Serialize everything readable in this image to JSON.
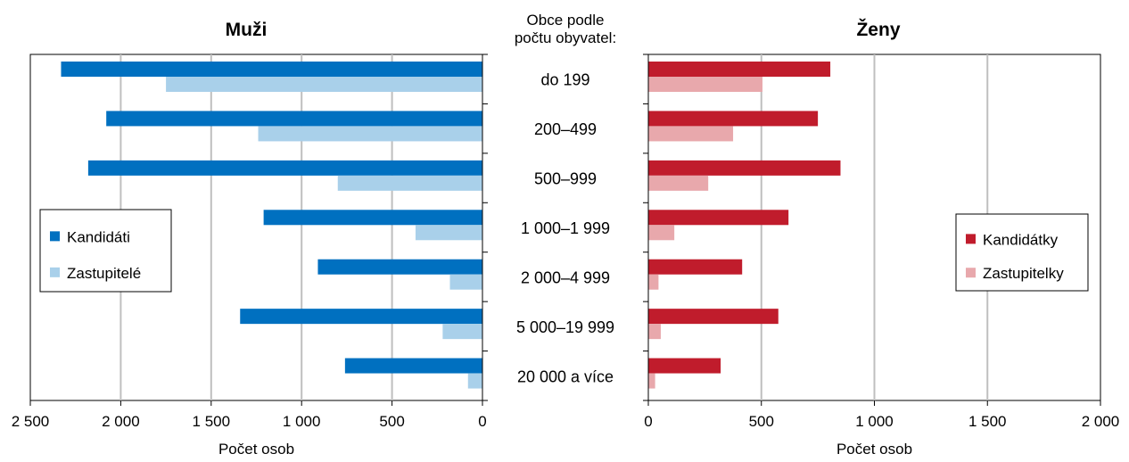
{
  "chart_data": {
    "type": "bar",
    "orientation": "horizontal",
    "category_header": [
      "Obce podle",
      "počtu obyvatel:"
    ],
    "categories": [
      "do 199",
      "200–499",
      "500–999",
      "1 000–1 999",
      "2 000–4 999",
      "5 000–19 999",
      "20 000 a více"
    ],
    "panels": [
      {
        "title": "Muži",
        "xlabel": "Počet osob",
        "xlim": [
          0,
          2500
        ],
        "direction": "reversed",
        "ticks": [
          2500,
          2000,
          1500,
          1000,
          500,
          0
        ],
        "tick_labels": [
          "2 500",
          "2 000",
          "1 500",
          "1 000",
          "500",
          "0"
        ],
        "grid": true,
        "legend_position": "left",
        "series": [
          {
            "name": "Kandidáti",
            "color": "#0070C0",
            "values": [
              2330,
              2080,
              2180,
              1210,
              910,
              1340,
              760
            ]
          },
          {
            "name": "Zastupitelé",
            "color": "#A9D0EA",
            "values": [
              1750,
              1240,
              800,
              370,
              180,
              220,
              80
            ]
          }
        ]
      },
      {
        "title": "Ženy",
        "xlabel": "Počet osob",
        "xlim": [
          0,
          2000
        ],
        "direction": "normal",
        "ticks": [
          0,
          500,
          1000,
          1500,
          2000
        ],
        "tick_labels": [
          "0",
          "500",
          "1 000",
          "1 500",
          "2 000"
        ],
        "grid": true,
        "legend_position": "right",
        "series": [
          {
            "name": "Kandidátky",
            "color": "#C01C2C",
            "values": [
              805,
              750,
              850,
              620,
              415,
              575,
              320
            ]
          },
          {
            "name": "Zastupitelky",
            "color": "#E8A8AC",
            "values": [
              505,
              375,
              265,
              115,
              45,
              55,
              30
            ]
          }
        ]
      }
    ]
  }
}
